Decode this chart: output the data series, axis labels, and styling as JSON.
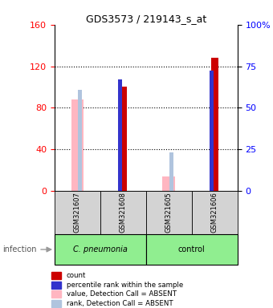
{
  "title": "GDS3573 / 219143_s_at",
  "samples": [
    "GSM321607",
    "GSM321608",
    "GSM321605",
    "GSM321606"
  ],
  "ylim_left": [
    0,
    160
  ],
  "ylim_right": [
    0,
    100
  ],
  "yticks_left": [
    0,
    40,
    80,
    120,
    160
  ],
  "yticks_right": [
    0,
    25,
    50,
    75,
    100
  ],
  "ytick_labels_right": [
    "0",
    "25",
    "50",
    "75",
    "100%"
  ],
  "count_values": [
    null,
    100,
    null,
    128
  ],
  "percentile_values": [
    null,
    107,
    null,
    116
  ],
  "absent_value_values": [
    88,
    null,
    14,
    null
  ],
  "absent_rank_values": [
    97,
    null,
    37,
    null
  ],
  "count_color": "#CC0000",
  "percentile_color": "#3333CC",
  "absent_value_color": "#FFB6C1",
  "absent_rank_color": "#B0C4DE",
  "legend_items": [
    {
      "color": "#CC0000",
      "label": "count"
    },
    {
      "color": "#3333CC",
      "label": "percentile rank within the sample"
    },
    {
      "color": "#FFB6C1",
      "label": "value, Detection Call = ABSENT"
    },
    {
      "color": "#B0C4DE",
      "label": "rank, Detection Call = ABSENT"
    }
  ],
  "infection_label": "infection",
  "cpneumonia_label": "C. pneumonia",
  "control_label": "control",
  "cpneumonia_color": "#90EE90",
  "control_color": "#90EE90",
  "sample_bg_color": "#D3D3D3"
}
